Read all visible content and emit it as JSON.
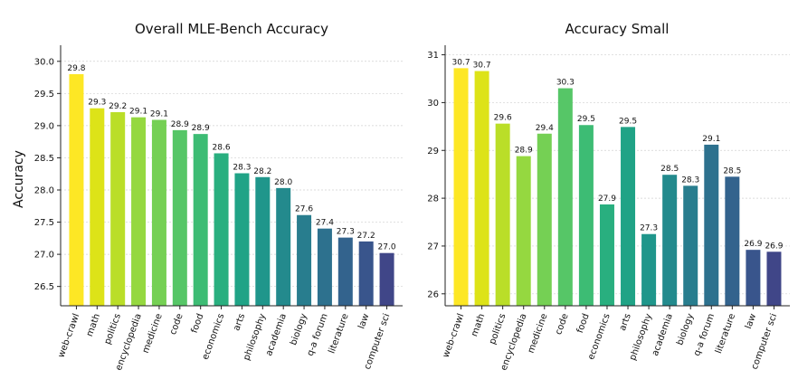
{
  "chart_data": [
    {
      "type": "bar",
      "title": "Overall MLE-Bench Accuracy",
      "xlabel": "",
      "ylabel": "Accuracy",
      "ylim": [
        26.2,
        30.25
      ],
      "yticks": [
        26.5,
        27.0,
        27.5,
        28.0,
        28.5,
        29.0,
        29.5,
        30.0
      ],
      "ytick_labels": [
        "26.5",
        "27.0",
        "27.5",
        "28.0",
        "28.5",
        "29.0",
        "29.5",
        "30.0"
      ],
      "categories": [
        "web-crawl",
        "math",
        "politics",
        "encyclopedia",
        "medicine",
        "code",
        "food",
        "economics",
        "arts",
        "philosophy",
        "academia",
        "biology",
        "q-a forum",
        "literature",
        "law",
        "computer sci"
      ],
      "values": [
        29.8,
        29.27,
        29.21,
        29.13,
        29.09,
        28.93,
        28.87,
        28.57,
        28.26,
        28.2,
        28.03,
        27.61,
        27.4,
        27.26,
        27.2,
        27.02
      ],
      "value_labels": [
        "29.8",
        "29.3",
        "29.2",
        "29.1",
        "29.1",
        "28.9",
        "28.9",
        "28.6",
        "28.3",
        "28.2",
        "28.0",
        "27.6",
        "27.4",
        "27.3",
        "27.2",
        "27.0"
      ],
      "colors": [
        "#fde725",
        "#dde318",
        "#bade28",
        "#95d840",
        "#75d054",
        "#56c667",
        "#3dbc74",
        "#29af7f",
        "#20a386",
        "#1f968b",
        "#238a8d",
        "#287d8e",
        "#2d718e",
        "#33638d",
        "#39558c",
        "#404688"
      ],
      "grid": true
    },
    {
      "type": "bar",
      "title": "Accuracy Small",
      "xlabel": "",
      "ylabel": "",
      "ylim": [
        25.75,
        31.2
      ],
      "yticks": [
        26,
        27,
        28,
        29,
        30,
        31
      ],
      "ytick_labels": [
        "26",
        "27",
        "28",
        "29",
        "30",
        "31"
      ],
      "categories": [
        "web-crawl",
        "math",
        "politics",
        "encyclopedia",
        "medicine",
        "code",
        "food",
        "economics",
        "arts",
        "philosophy",
        "academia",
        "biology",
        "q-a forum",
        "literature",
        "law",
        "computer sci"
      ],
      "values": [
        30.72,
        30.66,
        29.56,
        28.88,
        29.35,
        30.3,
        29.53,
        27.87,
        29.49,
        27.25,
        28.49,
        28.26,
        29.12,
        28.45,
        26.92,
        26.88
      ],
      "value_labels": [
        "30.7",
        "30.7",
        "29.6",
        "28.9",
        "29.4",
        "30.3",
        "29.5",
        "27.9",
        "29.5",
        "27.3",
        "28.5",
        "28.3",
        "29.1",
        "28.5",
        "26.9",
        "26.9"
      ],
      "colors": [
        "#fde725",
        "#dde318",
        "#bade28",
        "#95d840",
        "#75d054",
        "#56c667",
        "#3dbc74",
        "#29af7f",
        "#20a386",
        "#1f968b",
        "#238a8d",
        "#287d8e",
        "#2d718e",
        "#33638d",
        "#39558c",
        "#404688"
      ],
      "grid": true
    }
  ]
}
